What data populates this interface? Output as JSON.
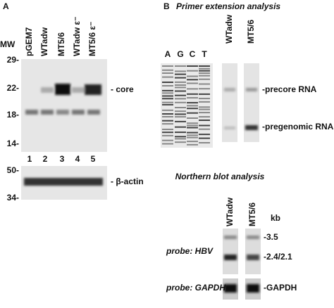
{
  "panel_a": {
    "label": "A",
    "mw_header": "MW",
    "lanes": [
      "pGEM7",
      "WTadw",
      "MT5/6",
      "WTadw ε⁻",
      "MT5/6 ε⁻"
    ],
    "markers_top": [
      "29-",
      "22-",
      "18-",
      "14-"
    ],
    "lane_numbers": [
      "1",
      "2",
      "3",
      "4",
      "5"
    ],
    "band_core": "- core",
    "markers_bottom": [
      "50-",
      "34-"
    ],
    "band_actin": "- β-actin"
  },
  "panel_b": {
    "label": "B",
    "title": "Primer extension analysis",
    "sequencing_lanes": [
      "A",
      "G",
      "C",
      "T"
    ],
    "sample_lanes": [
      "WTadw",
      "MT5/6"
    ],
    "band_precore": "-precore RNA",
    "band_pregenomic": "-pregenomic RNA",
    "northern_title": "Northern blot analysis",
    "northern_lanes": [
      "WTadw",
      "MT5/6"
    ],
    "unit": "kb",
    "markers": [
      "-3.5",
      "-2.4/2.1"
    ],
    "probe_hbv": "probe: HBV",
    "probe_gapdh": "probe: GAPDH",
    "band_gapdh": "-GAPDH"
  }
}
